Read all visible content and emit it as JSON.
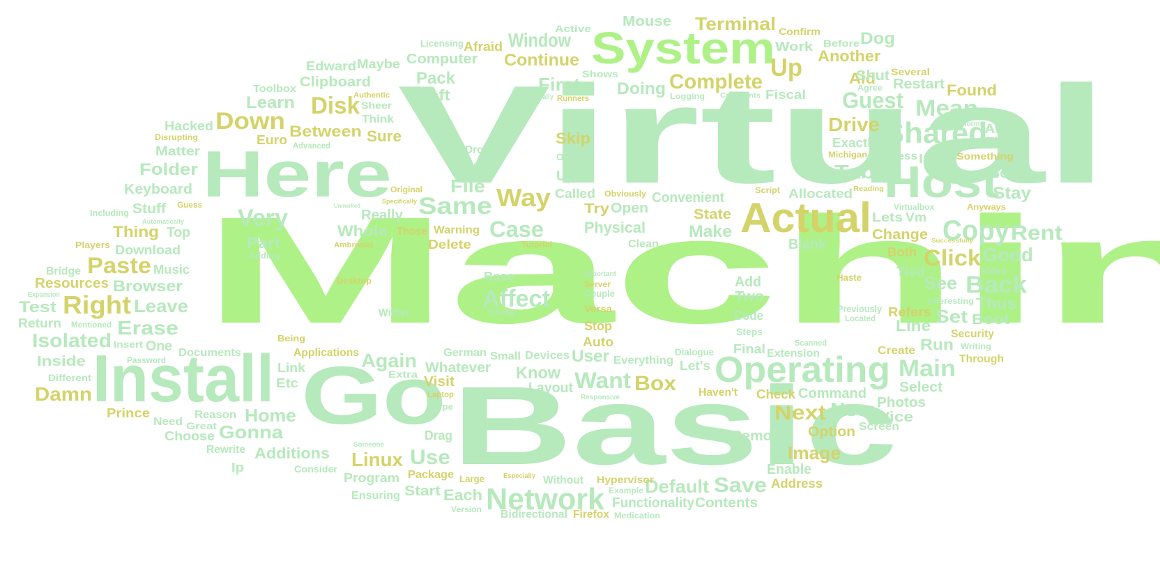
{
  "palette": {
    "light_green": "#b6e9bc",
    "lime": "#aef187",
    "yellow": "#d4d36a",
    "mint": "#c6f0bf"
  },
  "words": [
    {
      "text": "Machine",
      "color": "lime"
    },
    {
      "text": "Virtual",
      "color": "light_green"
    },
    {
      "text": "Basic",
      "color": "light_green"
    },
    {
      "text": "Go",
      "color": "light_green"
    },
    {
      "text": "Install",
      "color": "light_green"
    },
    {
      "text": "Here",
      "color": "light_green"
    },
    {
      "text": "System",
      "color": "lime"
    },
    {
      "text": "Host",
      "color": "light_green"
    },
    {
      "text": "Actual",
      "color": "yellow"
    },
    {
      "text": "Operating",
      "color": "light_green"
    },
    {
      "text": "Network",
      "color": "light_green"
    },
    {
      "text": "Shared",
      "color": "light_green"
    },
    {
      "text": "Copy",
      "color": "light_green"
    },
    {
      "text": "Affect",
      "color": "light_green"
    },
    {
      "text": "Right",
      "color": "yellow"
    },
    {
      "text": "Paste",
      "color": "yellow"
    },
    {
      "text": "Way",
      "color": "yellow"
    },
    {
      "text": "Same",
      "color": "light_green"
    },
    {
      "text": "Case",
      "color": "light_green"
    },
    {
      "text": "Very",
      "color": "light_green"
    },
    {
      "text": "Down",
      "color": "yellow"
    },
    {
      "text": "Disk",
      "color": "yellow"
    },
    {
      "text": "Complete",
      "color": "yellow"
    },
    {
      "text": "Up",
      "color": "yellow"
    },
    {
      "text": "Guest",
      "color": "light_green"
    },
    {
      "text": "Mean",
      "color": "light_green"
    },
    {
      "text": "Rent",
      "color": "light_green"
    },
    {
      "text": "Back",
      "color": "light_green"
    },
    {
      "text": "Good",
      "color": "light_green"
    },
    {
      "text": "Click",
      "color": "yellow"
    },
    {
      "text": "Main",
      "color": "light_green"
    },
    {
      "text": "Want",
      "color": "light_green"
    },
    {
      "text": "Box",
      "color": "yellow"
    },
    {
      "text": "Next",
      "color": "yellow"
    },
    {
      "text": "Now",
      "color": "light_green"
    },
    {
      "text": "Save",
      "color": "light_green"
    },
    {
      "text": "Default",
      "color": "light_green"
    },
    {
      "text": "Image",
      "color": "yellow"
    },
    {
      "text": "Linux",
      "color": "yellow"
    },
    {
      "text": "Use",
      "color": "light_green"
    },
    {
      "text": "Gonna",
      "color": "light_green"
    },
    {
      "text": "Home",
      "color": "light_green"
    },
    {
      "text": "Damn",
      "color": "yellow"
    },
    {
      "text": "Isolated",
      "color": "light_green"
    },
    {
      "text": "Erase",
      "color": "light_green"
    },
    {
      "text": "Leave",
      "color": "light_green"
    },
    {
      "text": "Browser",
      "color": "light_green"
    },
    {
      "text": "Resources",
      "color": "yellow"
    },
    {
      "text": "Again",
      "color": "light_green"
    },
    {
      "text": "Whatever",
      "color": "light_green"
    },
    {
      "text": "Know",
      "color": "light_green"
    },
    {
      "text": "User",
      "color": "light_green"
    },
    {
      "text": "Terminal",
      "color": "yellow"
    },
    {
      "text": "Window",
      "color": "light_green"
    },
    {
      "text": "Continue",
      "color": "yellow"
    },
    {
      "text": "First",
      "color": "light_green"
    },
    {
      "text": "Doing",
      "color": "light_green"
    },
    {
      "text": "Drive",
      "color": "yellow"
    },
    {
      "text": "Tab",
      "color": "light_green"
    },
    {
      "text": "Stay",
      "color": "light_green"
    },
    {
      "text": "Scary",
      "color": "light_green"
    },
    {
      "text": "Found",
      "color": "yellow"
    },
    {
      "text": "Restart",
      "color": "light_green"
    },
    {
      "text": "Aid",
      "color": "yellow"
    },
    {
      "text": "Shut",
      "color": "light_green"
    },
    {
      "text": "Dog",
      "color": "light_green"
    },
    {
      "text": "Another",
      "color": "yellow"
    },
    {
      "text": "Mouse",
      "color": "light_green"
    },
    {
      "text": "Active",
      "color": "light_green"
    },
    {
      "text": "Confirm",
      "color": "yellow"
    },
    {
      "text": "Work",
      "color": "light_green"
    },
    {
      "text": "Before",
      "color": "light_green"
    },
    {
      "text": "Computer",
      "color": "light_green"
    },
    {
      "text": "Afraid",
      "color": "yellow"
    },
    {
      "text": "Maybe",
      "color": "light_green"
    },
    {
      "text": "Edward",
      "color": "light_green"
    },
    {
      "text": "Licensing",
      "color": "light_green"
    },
    {
      "text": "Pack",
      "color": "light_green"
    },
    {
      "text": "Left",
      "color": "light_green"
    },
    {
      "text": "Clipboard",
      "color": "light_green"
    },
    {
      "text": "Learn",
      "color": "light_green"
    },
    {
      "text": "Toolbox",
      "color": "light_green"
    },
    {
      "text": "Hacked",
      "color": "light_green"
    },
    {
      "text": "Euro",
      "color": "yellow"
    },
    {
      "text": "Between",
      "color": "yellow"
    },
    {
      "text": "Sure",
      "color": "yellow"
    },
    {
      "text": "Think",
      "color": "light_green"
    },
    {
      "text": "Sheer",
      "color": "light_green"
    },
    {
      "text": "Authentic",
      "color": "yellow"
    },
    {
      "text": "Shows",
      "color": "light_green"
    },
    {
      "text": "Runners",
      "color": "yellow"
    },
    {
      "text": "Additionally",
      "color": "light_green"
    },
    {
      "text": "Logging",
      "color": "light_green"
    },
    {
      "text": "Comments",
      "color": "light_green"
    },
    {
      "text": "Fiscal",
      "color": "light_green"
    },
    {
      "text": "Agree",
      "color": "light_green"
    },
    {
      "text": "Several",
      "color": "yellow"
    },
    {
      "text": "Platforms",
      "color": "light_green"
    },
    {
      "text": "Aware",
      "color": "light_green"
    },
    {
      "text": "Time",
      "color": "light_green"
    },
    {
      "text": "Something",
      "color": "yellow"
    },
    {
      "text": "Input",
      "color": "light_green"
    },
    {
      "text": "Access",
      "color": "light_green"
    },
    {
      "text": "Exactly",
      "color": "light_green"
    },
    {
      "text": "Michigan",
      "color": "yellow"
    },
    {
      "text": "Skip",
      "color": "yellow"
    },
    {
      "text": "Optical",
      "color": "light_green"
    },
    {
      "text": "Upon",
      "color": "light_green"
    },
    {
      "text": "Called",
      "color": "light_green"
    },
    {
      "text": "Obviously",
      "color": "yellow"
    },
    {
      "text": "Try",
      "color": "yellow"
    },
    {
      "text": "Open",
      "color": "light_green"
    },
    {
      "text": "Convenient",
      "color": "light_green"
    },
    {
      "text": "State",
      "color": "yellow"
    },
    {
      "text": "Make",
      "color": "light_green"
    },
    {
      "text": "Allocated",
      "color": "light_green"
    },
    {
      "text": "Script",
      "color": "yellow"
    },
    {
      "text": "Reading",
      "color": "yellow"
    },
    {
      "text": "Lets",
      "color": "light_green"
    },
    {
      "text": "Vm",
      "color": "light_green"
    },
    {
      "text": "Virtualbox",
      "color": "light_green"
    },
    {
      "text": "Anyways",
      "color": "yellow"
    },
    {
      "text": "Change",
      "color": "yellow"
    },
    {
      "text": "Successfully",
      "color": "yellow"
    },
    {
      "text": "Both",
      "color": "yellow"
    },
    {
      "text": "Tied",
      "color": "light_green"
    },
    {
      "text": "Video",
      "color": "light_green"
    },
    {
      "text": "See",
      "color": "light_green"
    },
    {
      "text": "Thus",
      "color": "light_green"
    },
    {
      "text": "Interesting",
      "color": "light_green"
    },
    {
      "text": "Refers",
      "color": "yellow"
    },
    {
      "text": "Set",
      "color": "light_green"
    },
    {
      "text": "Boot",
      "color": "light_green"
    },
    {
      "text": "Line",
      "color": "light_green"
    },
    {
      "text": "Security",
      "color": "yellow"
    },
    {
      "text": "Writing",
      "color": "light_green"
    },
    {
      "text": "Through",
      "color": "yellow"
    },
    {
      "text": "Run",
      "color": "light_green"
    },
    {
      "text": "Create",
      "color": "yellow"
    },
    {
      "text": "Scanned",
      "color": "light_green"
    },
    {
      "text": "Extension",
      "color": "light_green"
    },
    {
      "text": "Select",
      "color": "light_green"
    },
    {
      "text": "Photos",
      "color": "light_green"
    },
    {
      "text": "Vice",
      "color": "light_green"
    },
    {
      "text": "Screen",
      "color": "light_green"
    },
    {
      "text": "Option",
      "color": "yellow"
    },
    {
      "text": "Remove",
      "color": "light_green"
    },
    {
      "text": "Enable",
      "color": "light_green"
    },
    {
      "text": "Address",
      "color": "yellow"
    },
    {
      "text": "Command",
      "color": "light_green"
    },
    {
      "text": "Check",
      "color": "yellow"
    },
    {
      "text": "Haven't",
      "color": "yellow"
    },
    {
      "text": "Final",
      "color": "light_green"
    },
    {
      "text": "Dialogue",
      "color": "light_green"
    },
    {
      "text": "Everything",
      "color": "light_green"
    },
    {
      "text": "Let's",
      "color": "light_green"
    },
    {
      "text": "Responsive",
      "color": "light_green"
    },
    {
      "text": "Layout",
      "color": "light_green"
    },
    {
      "text": "Devices",
      "color": "light_green"
    },
    {
      "text": "Small",
      "color": "light_green"
    },
    {
      "text": "German",
      "color": "light_green"
    },
    {
      "text": "Auto",
      "color": "yellow"
    },
    {
      "text": "Stop",
      "color": "yellow"
    },
    {
      "text": "Versa",
      "color": "yellow"
    },
    {
      "text": "Couple",
      "color": "light_green"
    },
    {
      "text": "Server",
      "color": "yellow"
    },
    {
      "text": "Important",
      "color": "light_green"
    },
    {
      "text": "Base",
      "color": "light_green"
    },
    {
      "text": "Haste",
      "color": "yellow"
    },
    {
      "text": "Previously",
      "color": "light_green"
    },
    {
      "text": "Located",
      "color": "light_green"
    },
    {
      "text": "Add",
      "color": "light_green"
    },
    {
      "text": "Two",
      "color": "light_green"
    },
    {
      "text": "Code",
      "color": "light_green"
    },
    {
      "text": "Steps",
      "color": "light_green"
    },
    {
      "text": "Blank",
      "color": "light_green"
    },
    {
      "text": "Clean",
      "color": "light_green"
    },
    {
      "text": "Physical",
      "color": "light_green"
    },
    {
      "text": "Tutorial",
      "color": "yellow"
    },
    {
      "text": "Delete",
      "color": "yellow"
    },
    {
      "text": "Warning",
      "color": "yellow"
    },
    {
      "text": "Those",
      "color": "yellow"
    },
    {
      "text": "Whole",
      "color": "light_green"
    },
    {
      "text": "Really",
      "color": "light_green"
    },
    {
      "text": "Original",
      "color": "yellow"
    },
    {
      "text": "Specifically",
      "color": "yellow"
    },
    {
      "text": "Unmarked",
      "color": "light_green"
    },
    {
      "text": "File",
      "color": "light_green"
    },
    {
      "text": "Drop",
      "color": "light_green"
    },
    {
      "text": "Output",
      "color": "light_green"
    },
    {
      "text": "Advanced",
      "color": "light_green"
    },
    {
      "text": "Matter",
      "color": "light_green"
    },
    {
      "text": "Disrupting",
      "color": "yellow"
    },
    {
      "text": "Folder",
      "color": "light_green"
    },
    {
      "text": "Keyboard",
      "color": "light_green"
    },
    {
      "text": "Including",
      "color": "light_green"
    },
    {
      "text": "Stuff",
      "color": "light_green"
    },
    {
      "text": "Guess",
      "color": "yellow"
    },
    {
      "text": "Automatically",
      "color": "light_green"
    },
    {
      "text": "Thing",
      "color": "yellow"
    },
    {
      "text": "Top",
      "color": "light_green"
    },
    {
      "text": "Part",
      "color": "light_green"
    },
    {
      "text": "Players",
      "color": "yellow"
    },
    {
      "text": "Download",
      "color": "light_green"
    },
    {
      "text": "Adding",
      "color": "light_green"
    },
    {
      "text": "Ambrosial",
      "color": "yellow"
    },
    {
      "text": "Bridge",
      "color": "light_green"
    },
    {
      "text": "Music",
      "color": "light_green"
    },
    {
      "text": "Expansion",
      "color": "light_green"
    },
    {
      "text": "Desktop",
      "color": "yellow"
    },
    {
      "text": "Test",
      "color": "light_green"
    },
    {
      "text": "Mentioned",
      "color": "light_green"
    },
    {
      "text": "Return",
      "color": "light_green"
    },
    {
      "text": "Within",
      "color": "light_green"
    },
    {
      "text": "Young",
      "color": "light_green"
    },
    {
      "text": "Insert",
      "color": "light_green"
    },
    {
      "text": "One",
      "color": "light_green"
    },
    {
      "text": "Being",
      "color": "yellow"
    },
    {
      "text": "Documents",
      "color": "light_green"
    },
    {
      "text": "Applications",
      "color": "yellow"
    },
    {
      "text": "Inside",
      "color": "light_green"
    },
    {
      "text": "Password",
      "color": "light_green"
    },
    {
      "text": "Different",
      "color": "light_green"
    },
    {
      "text": "Link",
      "color": "light_green"
    },
    {
      "text": "Etc",
      "color": "light_green"
    },
    {
      "text": "Extra",
      "color": "light_green"
    },
    {
      "text": "Visit",
      "color": "yellow"
    },
    {
      "text": "Laptop",
      "color": "yellow"
    },
    {
      "text": "Type",
      "color": "light_green"
    },
    {
      "text": "Prince",
      "color": "yellow"
    },
    {
      "text": "Need",
      "color": "light_green"
    },
    {
      "text": "Great",
      "color": "light_green"
    },
    {
      "text": "Reason",
      "color": "light_green"
    },
    {
      "text": "Choose",
      "color": "light_green"
    },
    {
      "text": "Rewrite",
      "color": "light_green"
    },
    {
      "text": "Someone",
      "color": "light_green"
    },
    {
      "text": "Drag",
      "color": "light_green"
    },
    {
      "text": "Additions",
      "color": "light_green"
    },
    {
      "text": "Ip",
      "color": "light_green"
    },
    {
      "text": "Consider",
      "color": "light_green"
    },
    {
      "text": "Program",
      "color": "light_green"
    },
    {
      "text": "Package",
      "color": "yellow"
    },
    {
      "text": "Large",
      "color": "yellow"
    },
    {
      "text": "Especially",
      "color": "yellow"
    },
    {
      "text": "Ensuring",
      "color": "light_green"
    },
    {
      "text": "Start",
      "color": "light_green"
    },
    {
      "text": "Each",
      "color": "light_green"
    },
    {
      "text": "Version",
      "color": "light_green"
    },
    {
      "text": "Without",
      "color": "light_green"
    },
    {
      "text": "Hypervisor",
      "color": "yellow"
    },
    {
      "text": "Example",
      "color": "light_green"
    },
    {
      "text": "Functionality",
      "color": "light_green"
    },
    {
      "text": "Contents",
      "color": "light_green"
    },
    {
      "text": "Bidirectional",
      "color": "light_green"
    },
    {
      "text": "Firefox",
      "color": "yellow"
    },
    {
      "text": "Medication",
      "color": "light_green"
    }
  ]
}
